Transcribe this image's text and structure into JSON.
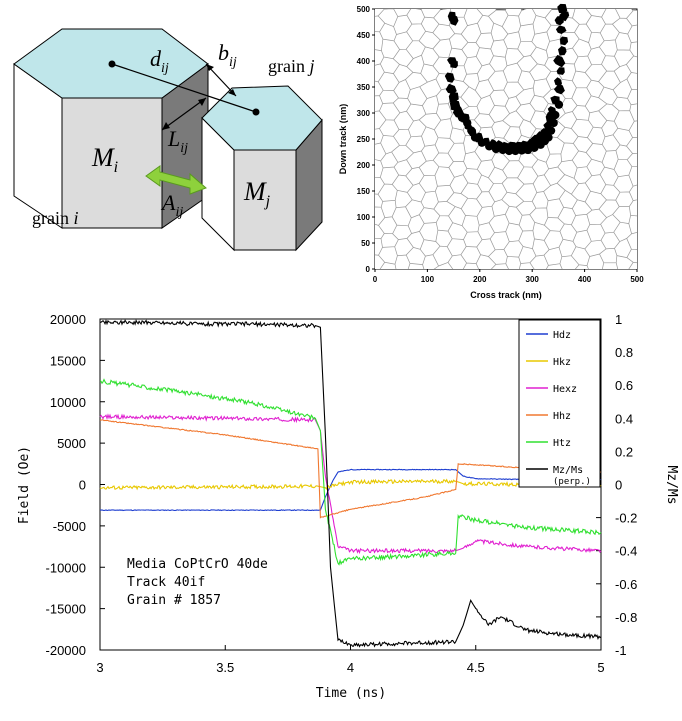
{
  "panels": {
    "schematic": {
      "labels": {
        "d": "d",
        "d_sub": "ij",
        "b": "b",
        "b_sub": "ij",
        "L": "L",
        "L_sub": "ij",
        "A": "A",
        "A_sub": "ij",
        "Mi": "M",
        "Mi_sub": "i",
        "Mj": "M",
        "Mj_sub": "j",
        "grain_i": "grain ",
        "grain_i_var": "i",
        "grain_j": "grain ",
        "grain_j_var": "j"
      },
      "colors": {
        "top_face": "#bfe6ea",
        "front_face": "#dcdcdc",
        "side_face": "#7a7a7a",
        "arrow": "#8ed13c"
      }
    },
    "grain_map": {
      "xlabel": "Cross track (nm)",
      "ylabel": "Down track (nm)",
      "xticks": [
        "0",
        "100",
        "200",
        "300",
        "400",
        "500"
      ],
      "yticks": [
        "0",
        "50",
        "100",
        "150",
        "200",
        "250",
        "300",
        "350",
        "400",
        "450",
        "500"
      ]
    }
  },
  "chart_data": {
    "type": "line",
    "xlabel": "Time (ns)",
    "ylabel_left": "Field (Oe)",
    "ylabel_right": "Mz/Ms",
    "xlim": [
      3,
      5
    ],
    "ylim_left": [
      -20000,
      20000
    ],
    "ylim_right": [
      -1,
      1
    ],
    "xticks": [
      "3",
      "3.5",
      "4",
      "4.5",
      "5"
    ],
    "yticks_left": [
      "20000",
      "15000",
      "10000",
      "5000",
      "0",
      "-5000",
      "-10000",
      "-15000",
      "-20000"
    ],
    "yticks_right": [
      "1",
      "0.8",
      "0.6",
      "0.4",
      "0.2",
      "0",
      "-0.2",
      "-0.4",
      "-0.6",
      "-0.8",
      "-1"
    ],
    "legend_position": "top-right",
    "annotation": [
      "Media CoPtCrO 40de",
      "Track 40if",
      "Grain # 1857"
    ],
    "series": [
      {
        "name": "Hdz",
        "color": "#1f3fd0",
        "axis": "left",
        "x": [
          3,
          3.88,
          3.9,
          3.93,
          3.95,
          4.0,
          4.42,
          4.45,
          4.5,
          4.7,
          5.0
        ],
        "y": [
          -3100,
          -3100,
          -1500,
          500,
          1500,
          1800,
          1800,
          1000,
          700,
          600,
          600
        ]
      },
      {
        "name": "Hkz",
        "color": "#e8c800",
        "axis": "left",
        "x": [
          3,
          3.5,
          3.87,
          3.9,
          3.95,
          4.0,
          4.42,
          4.45,
          4.7,
          5.0
        ],
        "y": [
          -400,
          -300,
          -200,
          -400,
          0,
          300,
          400,
          100,
          0,
          -100
        ]
      },
      {
        "name": "Hexz",
        "color": "#e020d0",
        "axis": "left",
        "x": [
          3,
          3.5,
          3.86,
          3.88,
          3.9,
          3.95,
          4.0,
          4.42,
          4.45,
          4.5,
          4.7,
          5.0
        ],
        "y": [
          8200,
          8000,
          7800,
          6500,
          1000,
          -7500,
          -8000,
          -8000,
          -7700,
          -6800,
          -7500,
          -8000
        ]
      },
      {
        "name": "Hhz",
        "color": "#f07830",
        "axis": "left",
        "x": [
          3,
          3.5,
          3.87,
          3.88,
          4.0,
          4.3,
          4.42,
          4.43,
          4.7,
          5.0
        ],
        "y": [
          7800,
          6000,
          4300,
          -4000,
          -3000,
          -1500,
          -600,
          2500,
          2000,
          1500
        ]
      },
      {
        "name": "Htz",
        "color": "#30e030",
        "axis": "left",
        "x": [
          3,
          3.3,
          3.6,
          3.86,
          3.88,
          3.9,
          3.95,
          4.0,
          4.42,
          4.43,
          4.5,
          4.7,
          5.0
        ],
        "y": [
          12500,
          11300,
          9900,
          8000,
          6500,
          -3000,
          -9500,
          -9000,
          -8300,
          -3800,
          -4300,
          -5200,
          -5800
        ]
      },
      {
        "name": "Mz/Ms (perp.)",
        "color": "#000000",
        "axis": "right",
        "x": [
          3,
          3.2,
          3.4,
          3.6,
          3.86,
          3.88,
          3.9,
          3.92,
          3.95,
          4.0,
          4.2,
          4.42,
          4.45,
          4.48,
          4.5,
          4.55,
          4.6,
          4.7,
          4.8,
          5.0
        ],
        "y": [
          0.98,
          0.98,
          0.97,
          0.97,
          0.96,
          0.95,
          0.3,
          -0.5,
          -0.94,
          -0.97,
          -0.96,
          -0.95,
          -0.85,
          -0.7,
          -0.75,
          -0.85,
          -0.8,
          -0.88,
          -0.9,
          -0.92
        ]
      }
    ]
  }
}
